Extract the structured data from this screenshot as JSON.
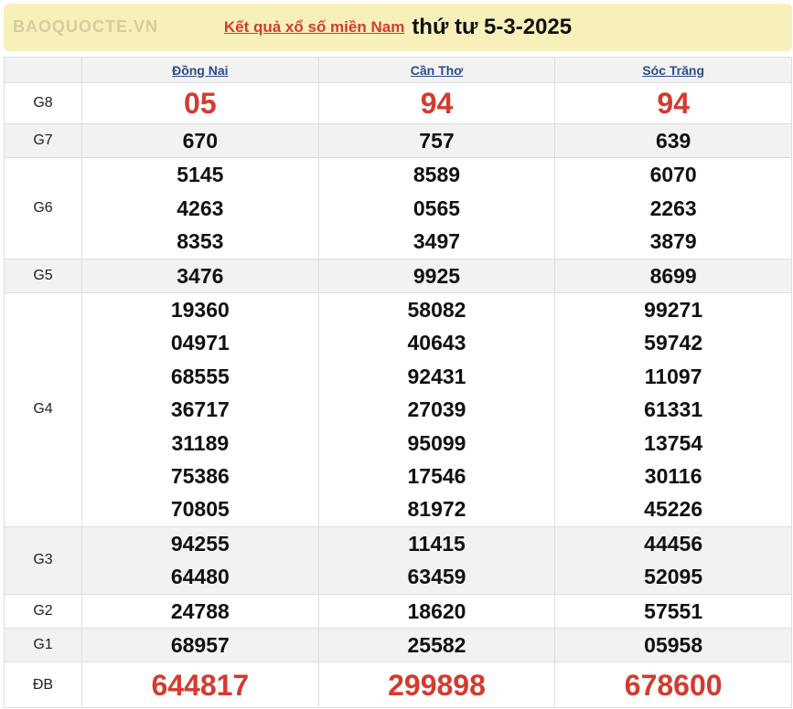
{
  "header": {
    "link": "Kết quả xổ số miền Nam",
    "date": "thứ tư 5-3-2025"
  },
  "provinces": [
    "Đồng Nai",
    "Cần Thơ",
    "Sóc Trăng"
  ],
  "prizes": [
    {
      "label": "G8",
      "values": [
        [
          "05"
        ],
        [
          "94"
        ],
        [
          "94"
        ]
      ],
      "red": true
    },
    {
      "label": "G7",
      "values": [
        [
          "670"
        ],
        [
          "757"
        ],
        [
          "639"
        ]
      ]
    },
    {
      "label": "G6",
      "values": [
        [
          "5145",
          "4263",
          "8353"
        ],
        [
          "8589",
          "0565",
          "3497"
        ],
        [
          "6070",
          "2263",
          "3879"
        ]
      ]
    },
    {
      "label": "G5",
      "values": [
        [
          "3476"
        ],
        [
          "9925"
        ],
        [
          "8699"
        ]
      ]
    },
    {
      "label": "G4",
      "values": [
        [
          "19360",
          "04971",
          "68555",
          "36717",
          "31189",
          "75386",
          "70805"
        ],
        [
          "58082",
          "40643",
          "92431",
          "27039",
          "95099",
          "17546",
          "81972"
        ],
        [
          "99271",
          "59742",
          "11097",
          "61331",
          "13754",
          "30116",
          "45226"
        ]
      ]
    },
    {
      "label": "G3",
      "values": [
        [
          "94255",
          "64480"
        ],
        [
          "11415",
          "63459"
        ],
        [
          "44456",
          "52095"
        ]
      ]
    },
    {
      "label": "G2",
      "values": [
        [
          "24788"
        ],
        [
          "18620"
        ],
        [
          "57551"
        ]
      ]
    },
    {
      "label": "G1",
      "values": [
        [
          "68957"
        ],
        [
          "25582"
        ],
        [
          "05958"
        ]
      ]
    },
    {
      "label": "ĐB",
      "values": [
        [
          "644817"
        ],
        [
          "299898"
        ],
        [
          "678600"
        ]
      ],
      "red": true
    }
  ],
  "watermark": "BAOQUOCTE.VN",
  "colors": {
    "accent": "#d33b2f",
    "title_bg": "#f8f0bb",
    "link": "#2b4d8a"
  }
}
